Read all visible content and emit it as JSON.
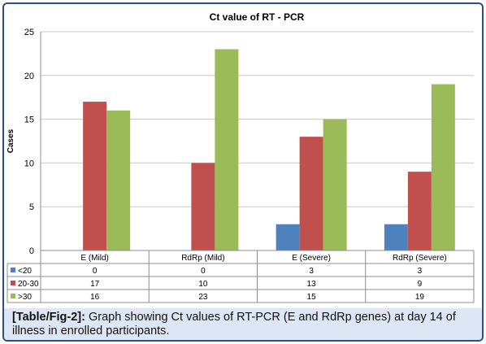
{
  "chart_data": {
    "type": "bar",
    "title": "Ct value of RT - PCR",
    "ylabel": "Cases",
    "xlabel": "",
    "ylim": [
      0,
      25
    ],
    "yticks": [
      0,
      5,
      10,
      15,
      20,
      25
    ],
    "grid": true,
    "legend": "table-below",
    "categories": [
      "E (Mild)",
      "RdRp (Mild)",
      "E (Severe)",
      "RdRp (Severe)"
    ],
    "series": [
      {
        "name": "<20",
        "color": "#4f81bd",
        "values": [
          0,
          0,
          3,
          3
        ]
      },
      {
        "name": "20-30",
        "color": "#c0504d",
        "values": [
          17,
          10,
          13,
          9
        ]
      },
      {
        "name": ">30",
        "color": "#9bbb59",
        "values": [
          16,
          23,
          15,
          19
        ]
      }
    ]
  },
  "caption": {
    "label": "[Table/Fig-2]:",
    "text": " Graph showing Ct values of RT-PCR (E and RdRp genes) at day 14 of illness in enrolled participants."
  }
}
